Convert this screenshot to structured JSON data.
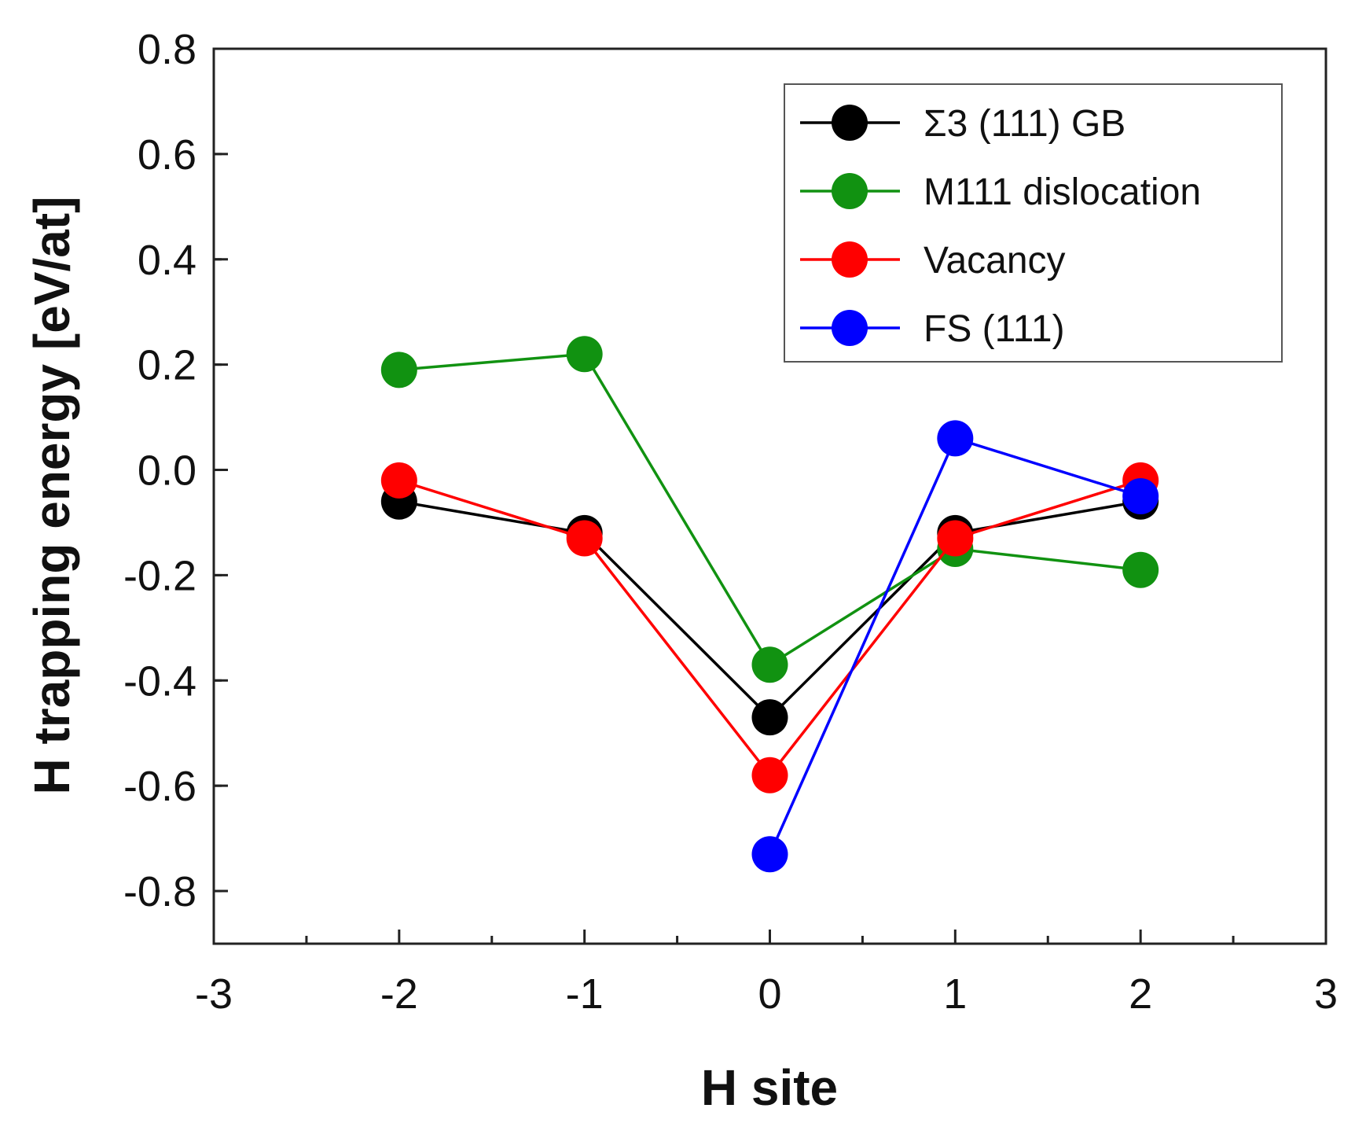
{
  "chart_data": {
    "type": "line",
    "title": "",
    "xlabel": "H site",
    "ylabel": "H trapping energy [eV/at]",
    "xlim": [
      -3,
      3
    ],
    "ylim": [
      -0.9,
      0.8
    ],
    "xticks": [
      -3,
      -2,
      -1,
      0,
      1,
      2,
      3
    ],
    "xtick_labels": [
      "-3",
      "-2",
      "-1",
      "0",
      "1",
      "2",
      "3"
    ],
    "yticks": [
      0.8,
      0.6,
      0.4,
      0.2,
      0.0,
      -0.2,
      -0.4,
      -0.6,
      -0.8
    ],
    "ytick_labels": [
      "0.8",
      "0.6",
      "0.4",
      "0.2",
      "0.0",
      "-0.2",
      "-0.4",
      "-0.6",
      "-0.8"
    ],
    "legend_position": "top-right",
    "series": [
      {
        "name": "Σ3 (111) GB",
        "color": "#000000",
        "x": [
          -2,
          -1,
          0,
          1,
          2
        ],
        "y": [
          -0.06,
          -0.12,
          -0.47,
          -0.12,
          -0.06
        ]
      },
      {
        "name": "M111 dislocation",
        "color": "#119211",
        "x": [
          -2,
          -1,
          0,
          1,
          2
        ],
        "y": [
          0.19,
          0.22,
          -0.37,
          -0.15,
          -0.19
        ]
      },
      {
        "name": "Vacancy",
        "color": "#ff0000",
        "x": [
          -2,
          -1,
          0,
          1,
          2
        ],
        "y": [
          -0.02,
          -0.13,
          -0.58,
          -0.13,
          -0.02
        ]
      },
      {
        "name": "FS (111)",
        "color": "#0000ff",
        "x": [
          0,
          1,
          2
        ],
        "y": [
          -0.73,
          0.06,
          -0.05
        ]
      }
    ]
  }
}
